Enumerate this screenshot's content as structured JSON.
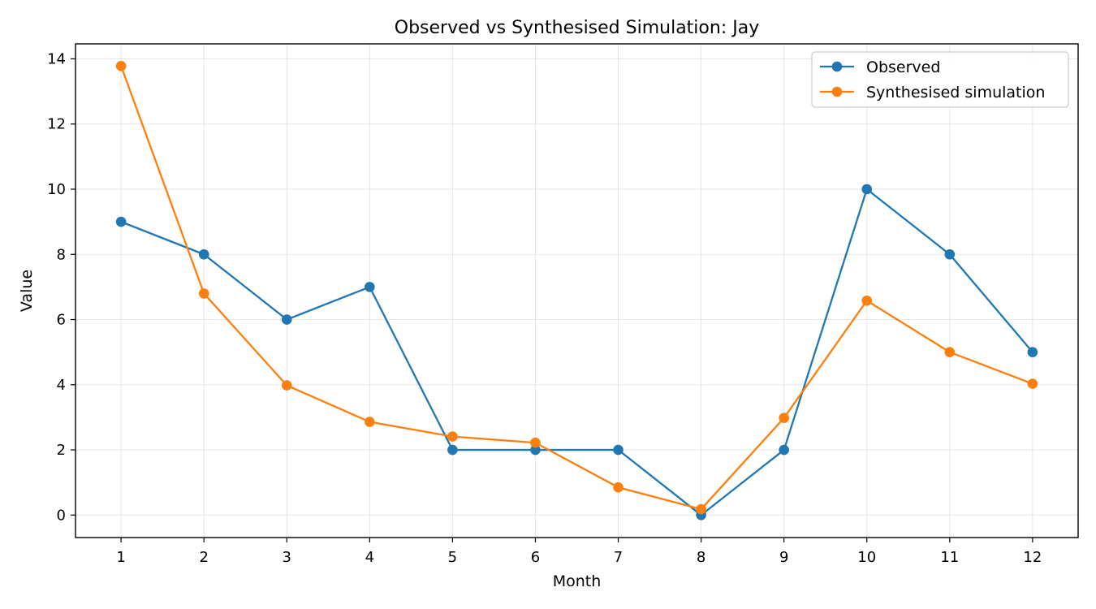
{
  "chart_data": {
    "type": "line",
    "title": "Observed vs Synthesised Simulation: Jay",
    "xlabel": "Month",
    "ylabel": "Value",
    "x": [
      1,
      2,
      3,
      4,
      5,
      6,
      7,
      8,
      9,
      10,
      11,
      12
    ],
    "xlim": [
      0.45,
      12.55
    ],
    "ylim": [
      -0.69,
      14.46
    ],
    "yticks": [
      0,
      2,
      4,
      6,
      8,
      10,
      12,
      14
    ],
    "grid": true,
    "legend_position": "top-right",
    "series": [
      {
        "name": "Observed",
        "color": "#1f77b4",
        "marker": "circle",
        "values": [
          9,
          8,
          6,
          7,
          2,
          2,
          2,
          0,
          2,
          10,
          8,
          5
        ]
      },
      {
        "name": "Synthesised simulation",
        "color": "#ff7f0e",
        "marker": "circle",
        "values": [
          13.78,
          6.8,
          3.98,
          2.86,
          2.41,
          2.22,
          0.85,
          0.18,
          2.98,
          6.58,
          5.0,
          4.03
        ]
      }
    ]
  }
}
